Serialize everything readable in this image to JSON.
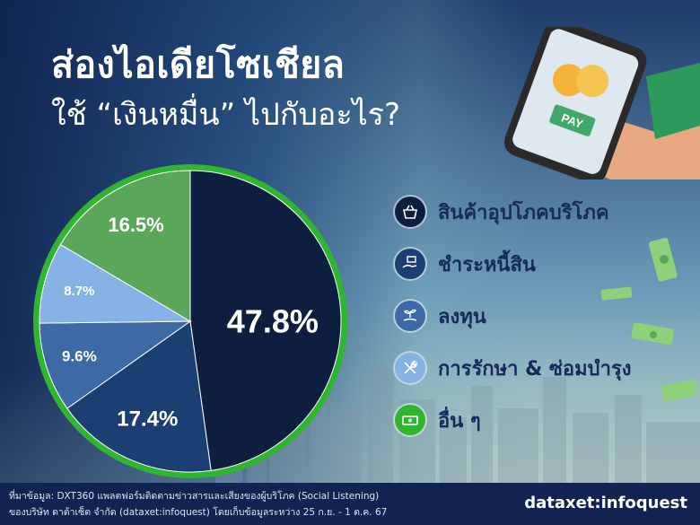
{
  "header": {
    "title_line1": "ส่องไอเดียโซเชียล",
    "title_line2": "ใช้ “เงินหมื่น” ไปกับอะไร?"
  },
  "chart_data": {
    "type": "pie",
    "categories": [
      "สินค้าอุปโภคบริโภค",
      "ชำระหนี้สิน",
      "ลงทุน",
      "การรักษา & ซ่อมบำรุง",
      "อื่น ๆ"
    ],
    "values": [
      47.8,
      17.4,
      9.6,
      8.7,
      16.5
    ],
    "labels": [
      "47.8%",
      "17.4%",
      "9.6%",
      "8.7%",
      "16.5%"
    ],
    "colors": [
      "#0d1e3f",
      "#1b3f73",
      "#3d6aa6",
      "#86b3e3",
      "#5aa65a"
    ],
    "ring_color": "#2fb52f"
  },
  "legend": [
    {
      "label": "สินค้าอุปโภคบริโภค",
      "icon": "shopping-basket-icon",
      "color": "#0d1e3f"
    },
    {
      "label": "ชำระหนี้สิน",
      "icon": "hand-payment-icon",
      "color": "#1b3f73"
    },
    {
      "label": "ลงทุน",
      "icon": "plant-hand-icon",
      "color": "#3d6aa6"
    },
    {
      "label": "การรักษา & ซ่อมบำรุง",
      "icon": "wrench-tools-icon",
      "color": "#86b3e3"
    },
    {
      "label": "อื่น ๆ",
      "icon": "money-icon",
      "color": "#2fb52f"
    }
  ],
  "phone": {
    "pay_label": "PAY"
  },
  "footer": {
    "source_line1": "ที่มาข้อมูล: DXT360 แพลตฟอร์มติดตามข่าวสารและเสียงของผู้บริโภค (Social Listening)",
    "source_line2": "ของบริษัท ดาต้าเซ็ต จำกัด (dataxet:infoquest) โดยเก็บข้อมูลระหว่าง 25 ก.ย. - 1 ต.ค. 67",
    "brand": "dataxet:infoquest"
  }
}
